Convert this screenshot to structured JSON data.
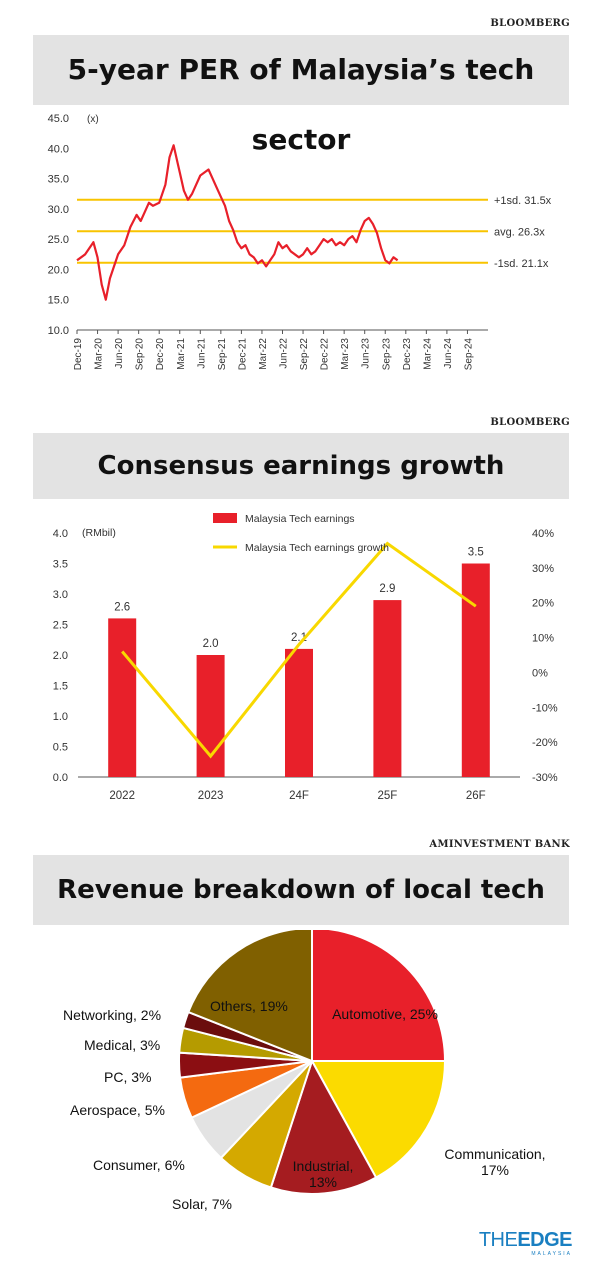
{
  "sources": {
    "s1": "BLOOMBERG",
    "s2": "BLOOMBERG",
    "s3": "AMINVESTMENT BANK"
  },
  "titles": {
    "t1": "5-year PER of Malaysia’s tech sector",
    "t2": "Consensus earnings growth",
    "t3": "Revenue breakdown of local tech sector"
  },
  "logo": {
    "main_the": "THE",
    "main_edge": "EDGE",
    "sub": "MALAYSIA"
  },
  "colors": {
    "red": "#e8202a",
    "yellow": "#f8d800",
    "band": "#e3e3e3"
  },
  "chart_data": [
    {
      "type": "line",
      "title": "5-year PER of Malaysia’s tech sector",
      "y_unit": "(x)",
      "ylim": [
        10.0,
        45.0
      ],
      "y_ticks": [
        "10.0",
        "15.0",
        "20.0",
        "25.0",
        "30.0",
        "35.0",
        "40.0",
        "45.0"
      ],
      "x_ticks": [
        "Dec-19",
        "Mar-20",
        "Jun-20",
        "Sep-20",
        "Dec-20",
        "Mar-21",
        "Jun-21",
        "Sep-21",
        "Dec-21",
        "Mar-22",
        "Jun-22",
        "Sep-22",
        "Dec-22",
        "Mar-23",
        "Jun-23",
        "Sep-23",
        "Dec-23",
        "Mar-24",
        "Jun-24",
        "Sep-24"
      ],
      "series": [
        {
          "color": "#e8202a",
          "points": [
            [
              0,
              21.5
            ],
            [
              0.4,
              22.5
            ],
            [
              0.8,
              24.5
            ],
            [
              1.0,
              22.0
            ],
            [
              1.2,
              17.5
            ],
            [
              1.4,
              15.0
            ],
            [
              1.6,
              18.5
            ],
            [
              1.8,
              20.5
            ],
            [
              2.0,
              22.5
            ],
            [
              2.3,
              24.0
            ],
            [
              2.6,
              27.0
            ],
            [
              2.9,
              29.0
            ],
            [
              3.1,
              28.0
            ],
            [
              3.3,
              29.5
            ],
            [
              3.5,
              31.0
            ],
            [
              3.7,
              30.5
            ],
            [
              4.0,
              31.0
            ],
            [
              4.3,
              34.0
            ],
            [
              4.5,
              38.5
            ],
            [
              4.7,
              40.5
            ],
            [
              4.9,
              37.5
            ],
            [
              5.0,
              36.0
            ],
            [
              5.2,
              33.0
            ],
            [
              5.4,
              31.5
            ],
            [
              5.6,
              32.5
            ],
            [
              5.8,
              34.0
            ],
            [
              6.0,
              35.5
            ],
            [
              6.2,
              36.0
            ],
            [
              6.4,
              36.5
            ],
            [
              6.6,
              35.0
            ],
            [
              6.8,
              33.5
            ],
            [
              7.0,
              32.0
            ],
            [
              7.2,
              30.5
            ],
            [
              7.4,
              28.0
            ],
            [
              7.6,
              26.5
            ],
            [
              7.8,
              24.5
            ],
            [
              8.0,
              23.5
            ],
            [
              8.2,
              24.0
            ],
            [
              8.4,
              22.5
            ],
            [
              8.6,
              22.0
            ],
            [
              8.8,
              21.0
            ],
            [
              9.0,
              21.5
            ],
            [
              9.2,
              20.5
            ],
            [
              9.4,
              21.5
            ],
            [
              9.6,
              22.5
            ],
            [
              9.8,
              24.5
            ],
            [
              10.0,
              23.5
            ],
            [
              10.2,
              24.0
            ],
            [
              10.4,
              23.0
            ],
            [
              10.6,
              22.5
            ],
            [
              10.8,
              22.0
            ],
            [
              11.0,
              22.5
            ],
            [
              11.2,
              23.5
            ],
            [
              11.4,
              22.5
            ],
            [
              11.6,
              23.0
            ],
            [
              11.8,
              24.0
            ],
            [
              12.0,
              25.0
            ],
            [
              12.2,
              24.5
            ],
            [
              12.4,
              25.0
            ],
            [
              12.6,
              24.0
            ],
            [
              12.8,
              24.5
            ],
            [
              13.0,
              24.0
            ],
            [
              13.2,
              25.0
            ],
            [
              13.4,
              25.5
            ],
            [
              13.6,
              24.5
            ],
            [
              13.8,
              26.5
            ],
            [
              14.0,
              28.0
            ],
            [
              14.2,
              28.5
            ],
            [
              14.4,
              27.5
            ],
            [
              14.6,
              26.0
            ],
            [
              14.8,
              23.5
            ],
            [
              15.0,
              21.5
            ],
            [
              15.2,
              21.0
            ],
            [
              15.4,
              22.0
            ],
            [
              15.6,
              21.5
            ]
          ]
        }
      ],
      "reference_lines": [
        {
          "label": "+1sd. 31.5x",
          "value": 31.5,
          "color": "#f8c400"
        },
        {
          "label": "avg. 26.3x",
          "value": 26.3,
          "color": "#f8c400"
        },
        {
          "label": "-1sd. 21.1x",
          "value": 21.1,
          "color": "#f8c400"
        }
      ]
    },
    {
      "type": "bar",
      "title": "Consensus earnings growth",
      "y_unit": "(RMbil)",
      "categories": [
        "2022",
        "2023",
        "24F",
        "25F",
        "26F"
      ],
      "ylim": [
        0.0,
        4.0
      ],
      "y_ticks": [
        "0.0",
        "0.5",
        "1.0",
        "1.5",
        "2.0",
        "2.5",
        "3.0",
        "3.5",
        "4.0"
      ],
      "y2lim": [
        -30,
        40
      ],
      "y2_ticks": [
        "-30%",
        "-20%",
        "-10%",
        "0%",
        "10%",
        "20%",
        "30%",
        "40%"
      ],
      "series": [
        {
          "name": "Malaysia Tech earnings",
          "kind": "bar",
          "color": "#e8202a",
          "values": [
            2.6,
            2.0,
            2.1,
            2.9,
            3.5
          ],
          "labels": [
            "2.6",
            "2.0",
            "2.1",
            "2.9",
            "3.5"
          ]
        },
        {
          "name": "Malaysia Tech earnings growth",
          "kind": "line",
          "axis": "right",
          "color": "#f8d800",
          "values": [
            6,
            -24,
            8,
            37,
            19
          ]
        }
      ]
    },
    {
      "type": "pie",
      "title": "Revenue breakdown of local tech sector",
      "slices": [
        {
          "label": "Automotive, 25%",
          "value": 25,
          "color": "#e8202a"
        },
        {
          "label": "Communication, 17%",
          "value": 17,
          "color": "#fbdb00"
        },
        {
          "label": "Industrial, 13%",
          "value": 13,
          "color": "#a51c20"
        },
        {
          "label": "Solar, 7%",
          "value": 7,
          "color": "#d4a900"
        },
        {
          "label": "Consumer, 6%",
          "value": 6,
          "color": "#e3e3e3"
        },
        {
          "label": "Aerospace, 5%",
          "value": 5,
          "color": "#f46a10"
        },
        {
          "label": "PC, 3%",
          "value": 3,
          "color": "#8b0e12"
        },
        {
          "label": "Medical, 3%",
          "value": 3,
          "color": "#b59b00"
        },
        {
          "label": "Networking, 2%",
          "value": 2,
          "color": "#6b0d0d"
        },
        {
          "label": "Others, 19%",
          "value": 19,
          "color": "#806000"
        }
      ]
    }
  ]
}
